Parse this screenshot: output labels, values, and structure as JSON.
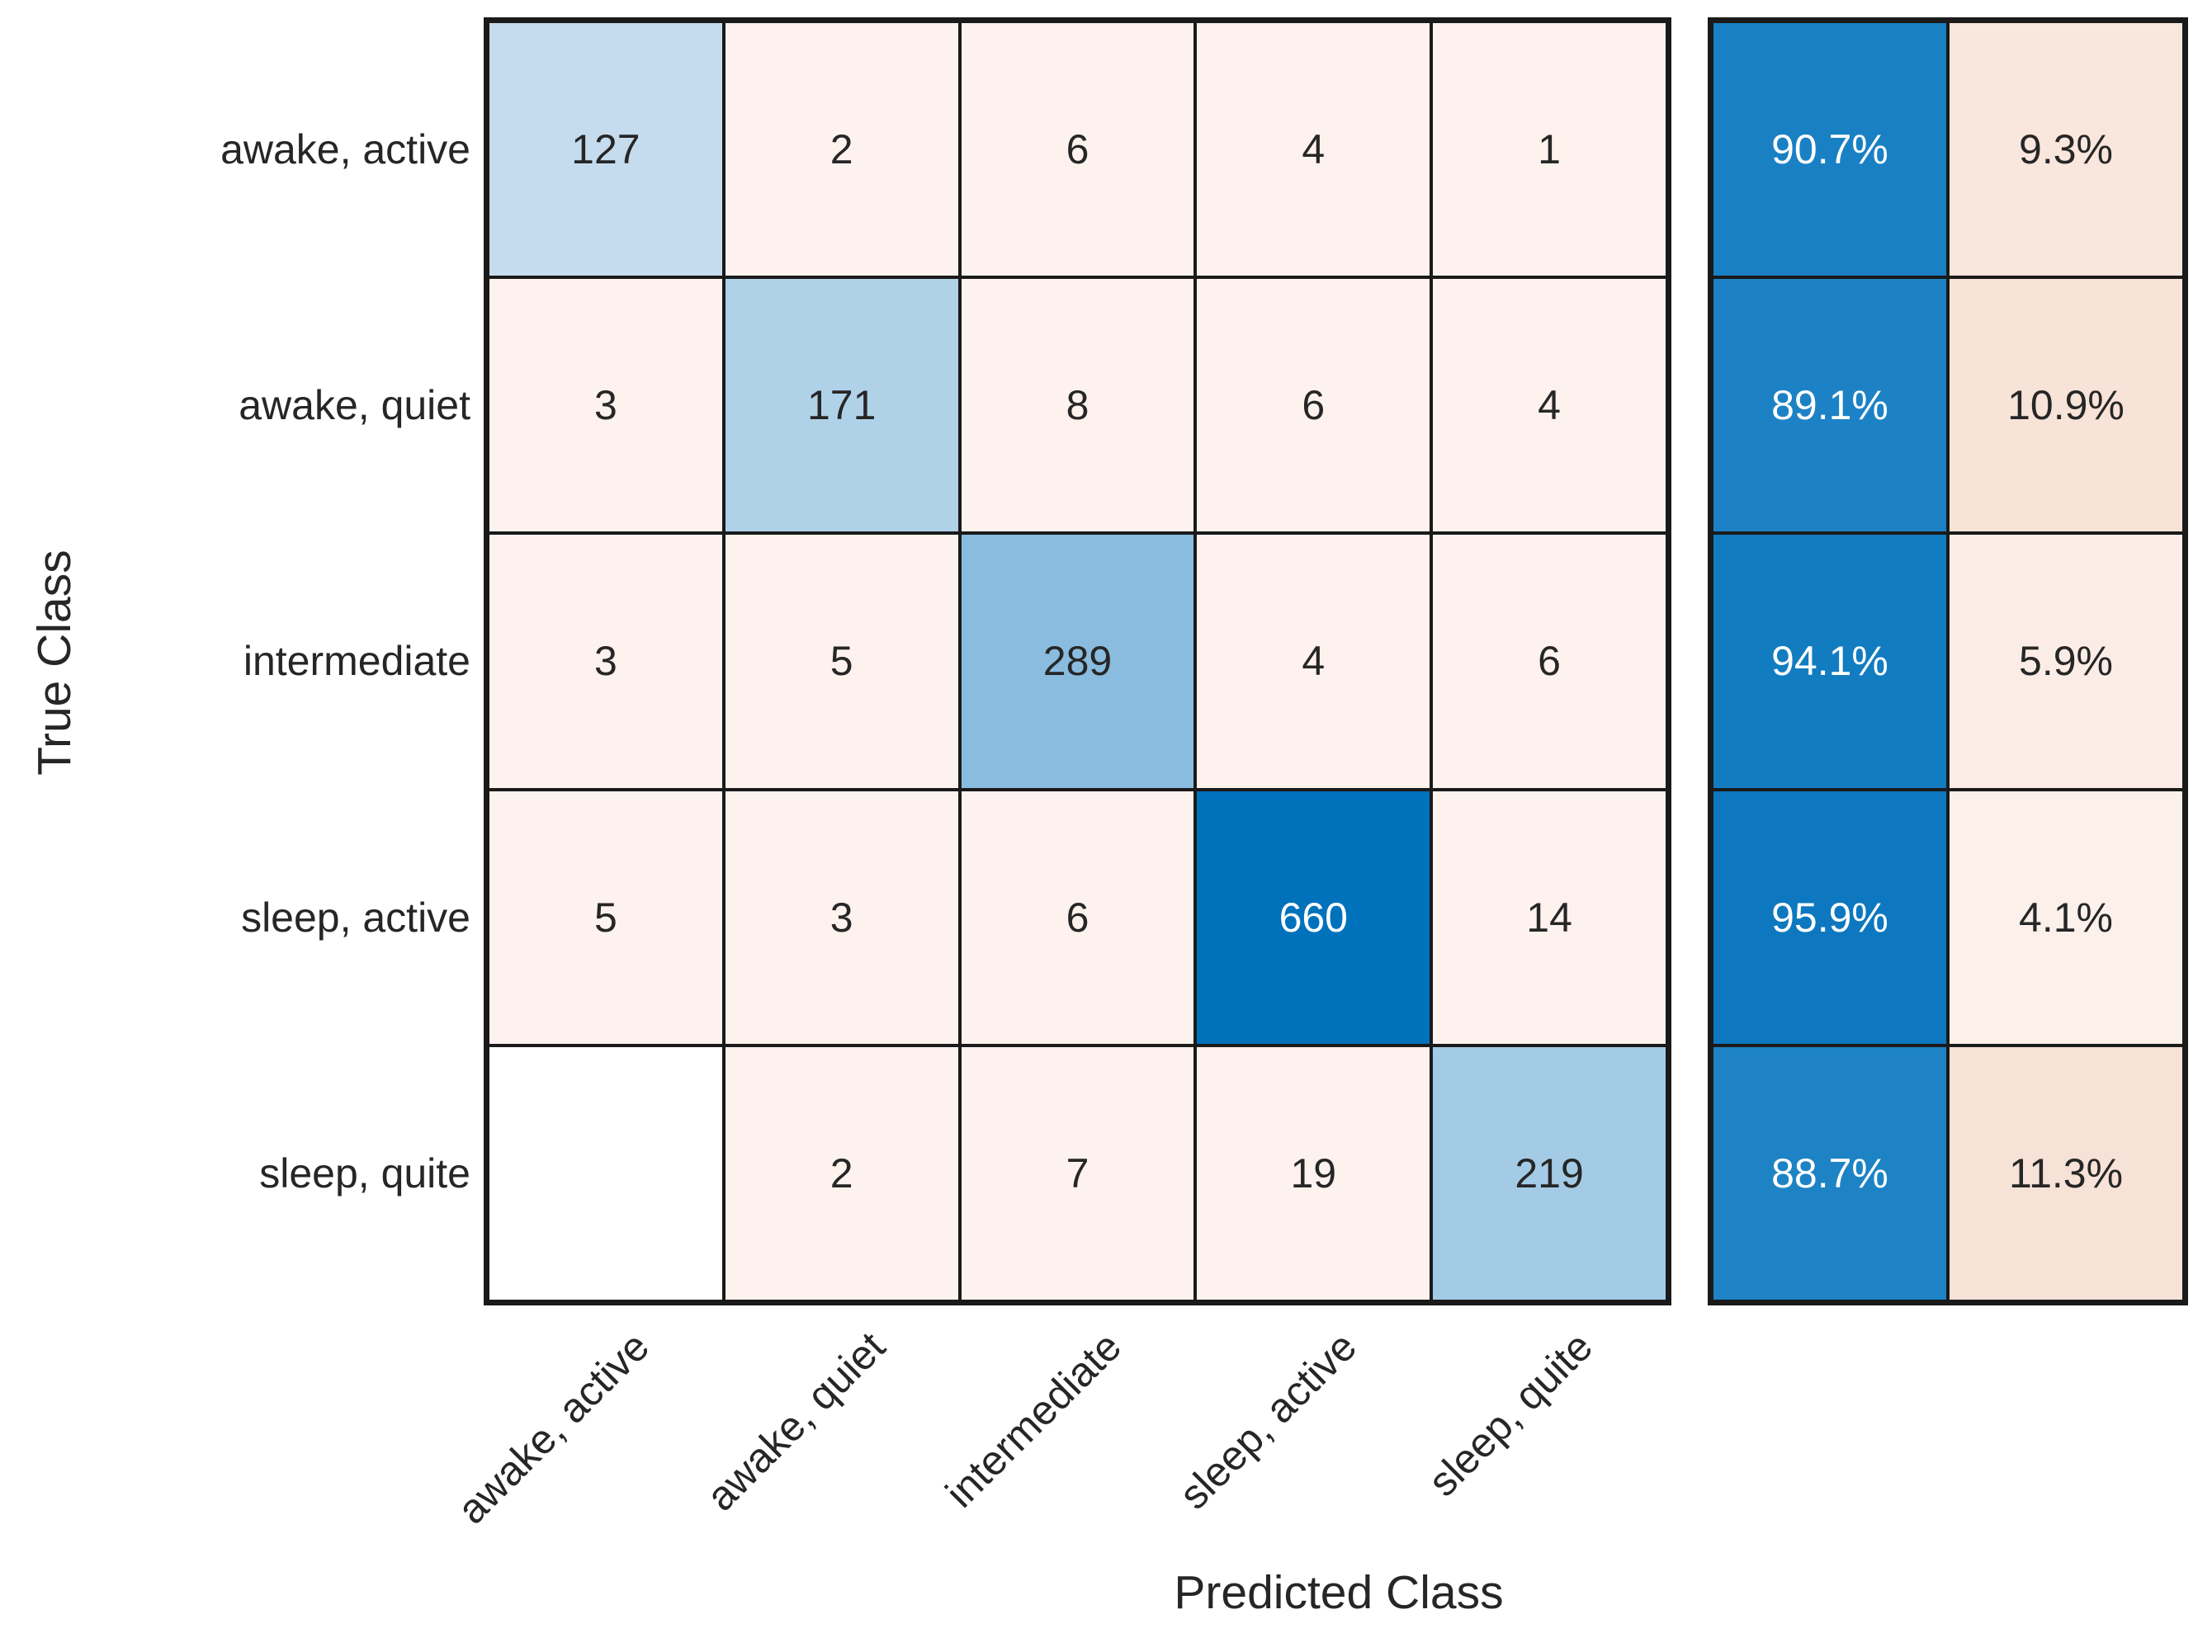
{
  "chart_data": {
    "type": "heatmap",
    "subtype": "confusion-matrix",
    "title": "",
    "xlabel": "Predicted Class",
    "ylabel": "True Class",
    "classes": [
      "awake, active",
      "awake, quiet",
      "intermediate",
      "sleep, active",
      "sleep, quite"
    ],
    "matrix": [
      [
        127,
        2,
        6,
        4,
        1
      ],
      [
        3,
        171,
        8,
        6,
        4
      ],
      [
        3,
        5,
        289,
        4,
        6
      ],
      [
        5,
        3,
        6,
        660,
        14
      ],
      [
        null,
        2,
        7,
        19,
        219
      ]
    ],
    "row_summary_tpr": [
      "90.7%",
      "89.1%",
      "94.1%",
      "95.9%",
      "88.7%"
    ],
    "row_summary_fnr": [
      "9.3%",
      "10.9%",
      "5.9%",
      "4.1%",
      "11.3%"
    ],
    "legend_position": "none",
    "grid": "on",
    "cells": [
      [
        {
          "v": "127",
          "bg": "#C5DCEF",
          "fg": "#262626"
        },
        {
          "v": "2",
          "bg": "#FDF2ED",
          "fg": "#262626"
        },
        {
          "v": "6",
          "bg": "#FDF2ED",
          "fg": "#262626"
        },
        {
          "v": "4",
          "bg": "#FDF2ED",
          "fg": "#262626"
        },
        {
          "v": "1",
          "bg": "#FDF2ED",
          "fg": "#262626"
        }
      ],
      [
        {
          "v": "3",
          "bg": "#FDF2ED",
          "fg": "#262626"
        },
        {
          "v": "171",
          "bg": "#B0D2E9",
          "fg": "#262626"
        },
        {
          "v": "8",
          "bg": "#FDF2ED",
          "fg": "#262626"
        },
        {
          "v": "6",
          "bg": "#FDF2ED",
          "fg": "#262626"
        },
        {
          "v": "4",
          "bg": "#FDF2ED",
          "fg": "#262626"
        }
      ],
      [
        {
          "v": "3",
          "bg": "#FDF2ED",
          "fg": "#262626"
        },
        {
          "v": "5",
          "bg": "#FDF2ED",
          "fg": "#262626"
        },
        {
          "v": "289",
          "bg": "#89BCDF",
          "fg": "#262626"
        },
        {
          "v": "4",
          "bg": "#FDF2ED",
          "fg": "#262626"
        },
        {
          "v": "6",
          "bg": "#FDF2ED",
          "fg": "#262626"
        }
      ],
      [
        {
          "v": "5",
          "bg": "#FDF2ED",
          "fg": "#262626"
        },
        {
          "v": "3",
          "bg": "#FDF2ED",
          "fg": "#262626"
        },
        {
          "v": "6",
          "bg": "#FDF2ED",
          "fg": "#262626"
        },
        {
          "v": "660",
          "bg": "#0072BC",
          "fg": "#FFFFFF"
        },
        {
          "v": "14",
          "bg": "#FDF2ED",
          "fg": "#262626"
        }
      ],
      [
        {
          "v": "",
          "bg": "#FFFFFF",
          "fg": "#262626"
        },
        {
          "v": "2",
          "bg": "#FDF2ED",
          "fg": "#262626"
        },
        {
          "v": "7",
          "bg": "#FDF2ED",
          "fg": "#262626"
        },
        {
          "v": "19",
          "bg": "#FDF2ED",
          "fg": "#262626"
        },
        {
          "v": "219",
          "bg": "#A3CBE5",
          "fg": "#262626"
        }
      ]
    ],
    "summary_cells": [
      [
        {
          "v": "90.7%",
          "bg": "#1A80C4",
          "fg": "#FFFFFF"
        },
        {
          "v": "9.3%",
          "bg": "#F9E6DD",
          "fg": "#262626"
        }
      ],
      [
        {
          "v": "89.1%",
          "bg": "#1C82C5",
          "fg": "#FFFFFF"
        },
        {
          "v": "10.9%",
          "bg": "#F8E3D9",
          "fg": "#262626"
        }
      ],
      [
        {
          "v": "94.1%",
          "bg": "#127CC1",
          "fg": "#FFFFFF"
        },
        {
          "v": "5.9%",
          "bg": "#FBEDE6",
          "fg": "#262626"
        }
      ],
      [
        {
          "v": "95.9%",
          "bg": "#0D78BF",
          "fg": "#FFFFFF"
        },
        {
          "v": "4.1%",
          "bg": "#FCF0EA",
          "fg": "#262626"
        }
      ],
      [
        {
          "v": "88.7%",
          "bg": "#1D83C5",
          "fg": "#FFFFFF"
        },
        {
          "v": "11.3%",
          "bg": "#F7E2D8",
          "fg": "#262626"
        }
      ]
    ],
    "colors": {
      "grid_line": "#1a1a1a",
      "text": "#262626",
      "text_on_dark": "#ffffff",
      "diagonal_max_blue": "#0072BC",
      "off_diagonal_pink": "#FDF2ED",
      "empty_cell": "#FFFFFF"
    }
  }
}
